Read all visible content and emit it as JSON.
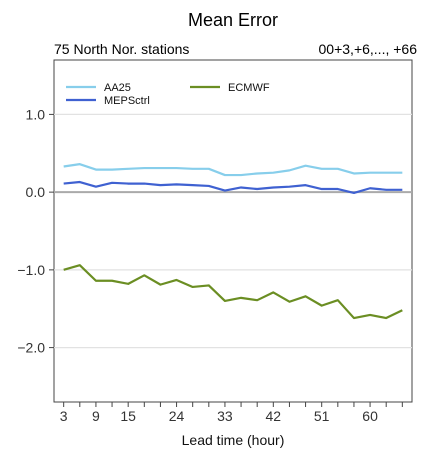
{
  "chart_data": {
    "type": "line",
    "title": "Mean Error",
    "subtitle_left": "75 North Nor. stations",
    "subtitle_right": "00+3,+6,..., +66",
    "xlabel": "Lead time (hour)",
    "ylabel": "",
    "x": [
      3,
      6,
      9,
      12,
      15,
      18,
      21,
      24,
      27,
      30,
      33,
      36,
      39,
      42,
      45,
      48,
      51,
      54,
      57,
      60,
      63,
      66
    ],
    "xticks": [
      3,
      9,
      15,
      24,
      33,
      42,
      51,
      60
    ],
    "xtick_labels": [
      "3",
      "9",
      "15",
      "24",
      "33",
      "42",
      "51",
      "60"
    ],
    "yticks": [
      -2.0,
      -1.0,
      0.0,
      1.0
    ],
    "ytick_labels": [
      "−2.0",
      "−1.0",
      "0.0",
      "1.0"
    ],
    "xlim": [
      1.2,
      67.8
    ],
    "ylim": [
      -2.7,
      1.7
    ],
    "grid": "horizontal",
    "zero_line": true,
    "legend_position": "top-left",
    "series": [
      {
        "name": "AA25",
        "color": "#87ceeb",
        "values": [
          0.33,
          0.36,
          0.29,
          0.29,
          0.3,
          0.31,
          0.31,
          0.31,
          0.3,
          0.3,
          0.22,
          0.22,
          0.24,
          0.25,
          0.28,
          0.34,
          0.3,
          0.3,
          0.24,
          0.25,
          0.25,
          0.25
        ]
      },
      {
        "name": "MEPSctrl",
        "color": "#3f61d1",
        "values": [
          0.11,
          0.13,
          0.07,
          0.12,
          0.11,
          0.11,
          0.09,
          0.1,
          0.09,
          0.08,
          0.02,
          0.06,
          0.04,
          0.06,
          0.07,
          0.09,
          0.04,
          0.04,
          -0.01,
          0.05,
          0.03,
          0.03
        ]
      },
      {
        "name": "ECMWF",
        "color": "#6b8e23",
        "values": [
          -1.0,
          -0.94,
          -1.14,
          -1.14,
          -1.18,
          -1.07,
          -1.19,
          -1.13,
          -1.22,
          -1.2,
          -1.4,
          -1.36,
          -1.39,
          -1.29,
          -1.41,
          -1.34,
          -1.46,
          -1.39,
          -1.62,
          -1.58,
          -1.62,
          -1.52
        ]
      }
    ]
  }
}
